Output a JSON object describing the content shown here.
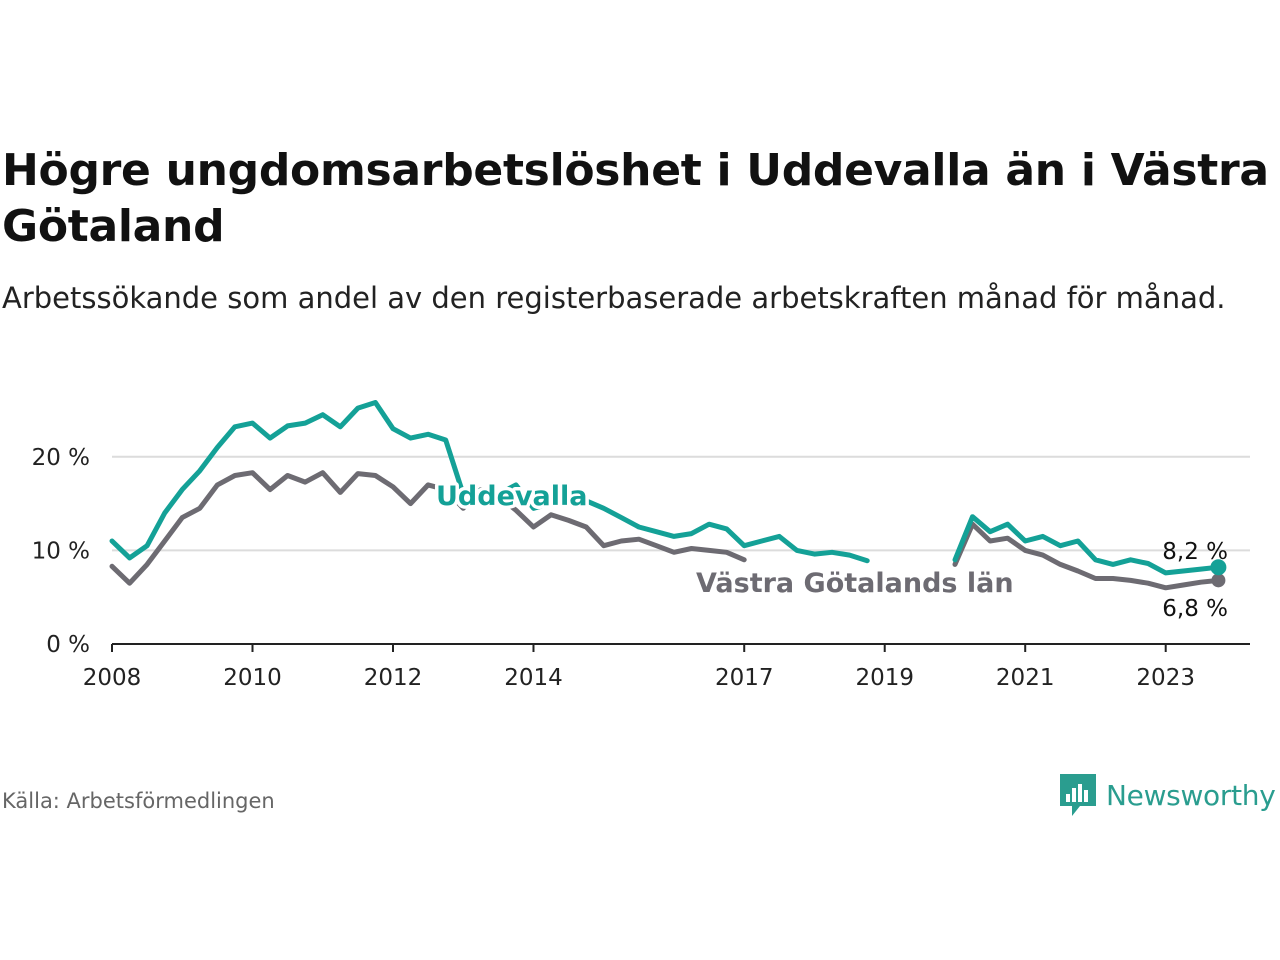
{
  "title": "Högre ungdomsarbetslöshet i Uddevalla än i Västra Götaland",
  "subtitle": "Arbetssökande som andel av den registerbaserade arbetskraften månad för månad.",
  "source": "Källa: Arbetsförmedlingen",
  "brand": {
    "name": "Newsworthy",
    "icon": "chart-bubble-icon"
  },
  "colors": {
    "uddevalla": "#14a197",
    "vastra": "#6d6b72",
    "grid": "#dcdcdc",
    "axis": "#222222"
  },
  "chart_data": {
    "type": "line",
    "title": "Högre ungdomsarbetslöshet i Uddevalla än i Västra Götaland",
    "xlabel": "",
    "ylabel": "",
    "xlim": [
      2008,
      2024.2
    ],
    "ylim": [
      0,
      25
    ],
    "y_ticks": [
      0,
      10,
      20
    ],
    "y_tick_labels": [
      "0 %",
      "10 %",
      "20 %"
    ],
    "x_ticks": [
      2008,
      2010,
      2012,
      2014,
      2017,
      2019,
      2021,
      2023
    ],
    "x_tick_labels": [
      "2008",
      "2010",
      "2012",
      "2014",
      "2017",
      "2019",
      "2021",
      "2023"
    ],
    "grid": true,
    "series": [
      {
        "name": "Uddevalla",
        "label": "Uddevalla",
        "end_label": "8,2 %",
        "x": [
          2008.0,
          2008.25,
          2008.5,
          2008.75,
          2009.0,
          2009.25,
          2009.5,
          2009.75,
          2010.0,
          2010.25,
          2010.5,
          2010.75,
          2011.0,
          2011.25,
          2011.5,
          2011.75,
          2012.0,
          2012.25,
          2012.5,
          2012.75,
          2013.0,
          2013.25,
          2013.5,
          2013.75,
          2014.0,
          2014.25,
          2014.5,
          2014.75,
          2015.0,
          2015.25,
          2015.5,
          2015.75,
          2016.0,
          2016.25,
          2016.5,
          2016.75,
          2017.0,
          2017.25,
          2017.5,
          2017.75,
          2018.0,
          2018.25,
          2018.5,
          2018.75,
          null,
          2020.0,
          2020.25,
          2020.5,
          2020.75,
          2021.0,
          2021.25,
          2021.5,
          2021.75,
          2022.0,
          2022.25,
          2022.5,
          2022.75,
          2023.0,
          2023.25,
          2023.5,
          2023.75
        ],
        "values": [
          11.0,
          9.2,
          10.5,
          14.0,
          16.5,
          18.5,
          21.0,
          23.2,
          23.6,
          22.0,
          23.3,
          23.6,
          24.5,
          23.2,
          25.2,
          25.8,
          23.0,
          22.0,
          22.4,
          21.8,
          16.0,
          16.4,
          16.0,
          17.0,
          14.5,
          15.0,
          16.0,
          15.3,
          14.5,
          13.5,
          12.5,
          12.0,
          11.5,
          11.8,
          12.8,
          12.3,
          10.5,
          11.0,
          11.5,
          10.0,
          9.6,
          9.8,
          9.5,
          8.9,
          null,
          9.0,
          13.6,
          12.0,
          12.8,
          11.0,
          11.5,
          10.5,
          11.0,
          9.0,
          8.5,
          9.0,
          8.6,
          7.6,
          7.8,
          8.0,
          8.2
        ]
      },
      {
        "name": "Västra Götalands län",
        "label": "Västra Götalands län",
        "end_label": "6,8 %",
        "x": [
          2008.0,
          2008.25,
          2008.5,
          2008.75,
          2009.0,
          2009.25,
          2009.5,
          2009.75,
          2010.0,
          2010.25,
          2010.5,
          2010.75,
          2011.0,
          2011.25,
          2011.5,
          2011.75,
          2012.0,
          2012.25,
          2012.5,
          2012.75,
          2013.0,
          2013.25,
          2013.5,
          2013.75,
          2014.0,
          2014.25,
          2014.5,
          2014.75,
          2015.0,
          2015.25,
          2015.5,
          2015.75,
          2016.0,
          2016.25,
          2016.5,
          2016.75,
          2017.0,
          null,
          2020.0,
          2020.25,
          2020.5,
          2020.75,
          2021.0,
          2021.25,
          2021.5,
          2021.75,
          2022.0,
          2022.25,
          2022.5,
          2022.75,
          2023.0,
          2023.25,
          2023.5,
          2023.75
        ],
        "values": [
          8.3,
          6.5,
          8.5,
          11.0,
          13.5,
          14.5,
          17.0,
          18.0,
          18.3,
          16.5,
          18.0,
          17.3,
          18.3,
          16.2,
          18.2,
          18.0,
          16.8,
          15.0,
          17.0,
          16.5,
          14.5,
          16.5,
          15.8,
          14.3,
          12.5,
          13.8,
          13.2,
          12.5,
          10.5,
          11.0,
          11.2,
          10.5,
          9.8,
          10.2,
          10.0,
          9.8,
          9.0,
          null,
          8.5,
          12.8,
          11.0,
          11.3,
          10.0,
          9.5,
          8.5,
          7.8,
          7.0,
          7.0,
          6.8,
          6.5,
          6.0,
          6.3,
          6.6,
          6.8
        ]
      }
    ]
  }
}
